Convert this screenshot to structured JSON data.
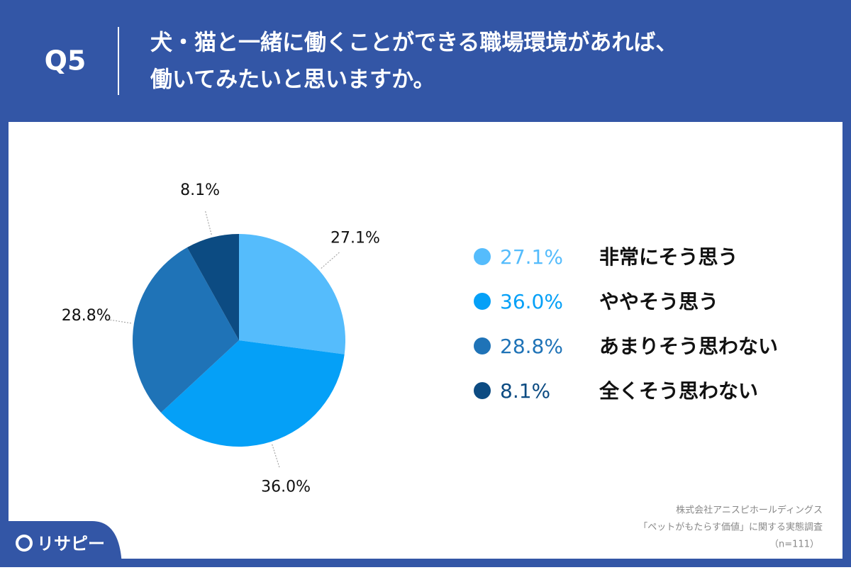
{
  "header": {
    "question": "Q5",
    "title_lines": [
      "犬・猫と一緒に働くことができる職場環境があれば、",
      "働いてみたいと思いますか。"
    ]
  },
  "chart_data": {
    "type": "pie",
    "categories": [
      "非常にそう思う",
      "ややそう思う",
      "あまりそう思わない",
      "全くそう思わない"
    ],
    "values": [
      27.1,
      36.0,
      28.8,
      8.1
    ],
    "value_labels": [
      "27.1%",
      "36.0%",
      "28.8%",
      "8.1%"
    ],
    "colors": [
      "#55bcfc",
      "#05a0f7",
      "#1f73b7",
      "#0c4b82"
    ]
  },
  "source": [
    "株式会社アニスピホールディングス",
    "「ペットがもたらす価値」に関する実態調査",
    "（n=111）"
  ],
  "logo": "リサピー"
}
